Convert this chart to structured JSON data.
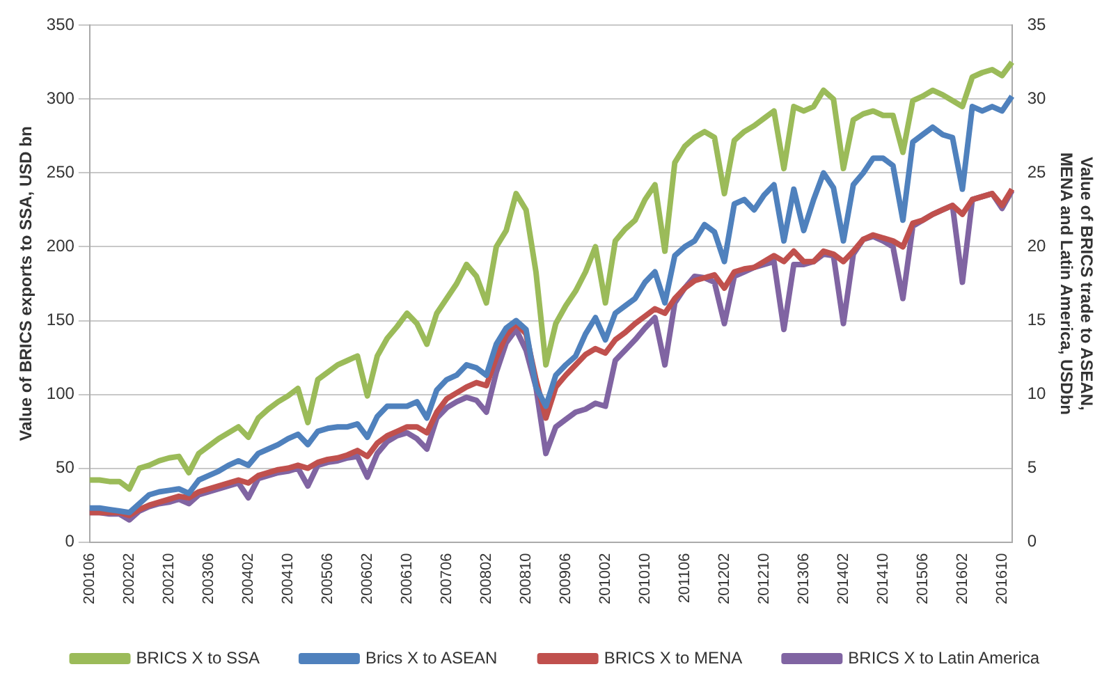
{
  "chart_data": {
    "type": "line",
    "ylabel": "Value of BRICS exports to SSA, USD bn",
    "y2label": "Value of BRICS trade to ASEAN, MENA and Latin America, USDbn",
    "categories": [
      "200106",
      null,
      null,
      null,
      "200202",
      null,
      null,
      null,
      "200210",
      null,
      null,
      null,
      "200306",
      null,
      null,
      null,
      "200402",
      null,
      null,
      null,
      "200410",
      null,
      null,
      null,
      "200506",
      null,
      null,
      null,
      "200602",
      null,
      null,
      null,
      "200610",
      null,
      null,
      null,
      "200706",
      null,
      null,
      null,
      "200802",
      null,
      null,
      null,
      "200810",
      null,
      null,
      null,
      "200906",
      null,
      null,
      null,
      "201002",
      null,
      null,
      null,
      "201010",
      null,
      null,
      null,
      "201106",
      null,
      null,
      null,
      "201202",
      null,
      null,
      null,
      "201210",
      null,
      null,
      null,
      "201306",
      null,
      null,
      null,
      "201402",
      null,
      null,
      null,
      "201410",
      null,
      null,
      null,
      "201506",
      null,
      null,
      null,
      "201602",
      null,
      null,
      null,
      "201610",
      null
    ],
    "series": [
      {
        "name": "BRICS X to SSA",
        "color": "#9bbb59",
        "values": [
          42,
          42,
          41,
          41,
          36,
          50,
          52,
          55,
          57,
          58,
          47,
          60,
          65,
          70,
          74,
          78,
          71,
          84,
          90,
          95,
          99,
          104,
          81,
          110,
          115,
          120,
          123,
          126,
          99,
          126,
          138,
          146,
          155,
          148,
          134,
          155,
          165,
          175,
          188,
          180,
          162,
          200,
          211,
          236,
          225,
          183,
          120,
          148,
          160,
          170,
          183,
          200,
          162,
          204,
          212,
          218,
          232,
          242,
          197,
          257,
          268,
          274,
          278,
          274,
          236,
          272,
          278,
          282,
          287,
          292,
          253,
          295,
          292,
          295,
          306,
          300,
          253,
          286,
          290,
          292,
          289,
          289,
          264,
          299,
          302,
          306,
          303,
          299,
          295,
          315,
          318,
          320,
          316,
          325
        ]
      },
      {
        "name": "Brics X to ASEAN",
        "color": "#4f81bd",
        "axis": "y2",
        "values": [
          2.3,
          2.3,
          2.2,
          2.1,
          2.0,
          2.6,
          3.2,
          3.4,
          3.5,
          3.6,
          3.3,
          4.2,
          4.5,
          4.8,
          5.2,
          5.5,
          5.2,
          6.0,
          6.3,
          6.6,
          7.0,
          7.3,
          6.6,
          7.5,
          7.7,
          7.8,
          7.8,
          8.0,
          7.1,
          8.5,
          9.2,
          9.2,
          9.2,
          9.5,
          8.4,
          10.3,
          11.0,
          11.3,
          12.0,
          11.8,
          11.3,
          13.4,
          14.5,
          15.0,
          14.4,
          10.5,
          9.2,
          11.3,
          12.0,
          12.6,
          14.1,
          15.2,
          13.7,
          15.5,
          16.0,
          16.5,
          17.6,
          18.3,
          16.2,
          19.4,
          20.0,
          20.4,
          21.5,
          21.0,
          19.0,
          22.9,
          23.2,
          22.5,
          23.5,
          24.2,
          20.4,
          23.9,
          21.1,
          23.2,
          25.0,
          24.0,
          20.4,
          24.2,
          25.0,
          26.0,
          26.0,
          25.5,
          21.8,
          27.1,
          27.6,
          28.1,
          27.6,
          27.4,
          23.9,
          29.5,
          29.2,
          29.5,
          29.2,
          30.2
        ]
      },
      {
        "name": "BRICS X to MENA",
        "color": "#c0504d",
        "axis": "y2",
        "values": [
          2.0,
          2.0,
          2.0,
          2.0,
          1.8,
          2.2,
          2.5,
          2.7,
          2.9,
          3.1,
          3.0,
          3.4,
          3.6,
          3.8,
          4.0,
          4.2,
          4.0,
          4.5,
          4.7,
          4.9,
          5.0,
          5.2,
          5.0,
          5.4,
          5.6,
          5.7,
          5.9,
          6.2,
          5.8,
          6.7,
          7.2,
          7.5,
          7.8,
          7.8,
          7.4,
          8.8,
          9.7,
          10.1,
          10.5,
          10.8,
          10.6,
          12.5,
          14.0,
          14.8,
          14.1,
          11.0,
          8.4,
          10.5,
          11.3,
          12.0,
          12.7,
          13.1,
          12.8,
          13.7,
          14.2,
          14.8,
          15.3,
          15.8,
          15.5,
          16.5,
          17.2,
          17.7,
          17.9,
          18.1,
          17.2,
          18.3,
          18.5,
          18.6,
          19.0,
          19.4,
          19.0,
          19.7,
          19.0,
          19.0,
          19.7,
          19.5,
          19.0,
          19.7,
          20.5,
          20.8,
          20.6,
          20.4,
          20.0,
          21.6,
          21.8,
          22.2,
          22.5,
          22.8,
          22.2,
          23.2,
          23.4,
          23.6,
          22.8,
          23.9
        ]
      },
      {
        "name": "BRICS X to Latin America",
        "color": "#8064a2",
        "axis": "y2",
        "values": [
          2.0,
          2.0,
          1.9,
          1.9,
          1.5,
          2.1,
          2.4,
          2.6,
          2.7,
          2.9,
          2.6,
          3.2,
          3.4,
          3.6,
          3.8,
          4.0,
          3.0,
          4.3,
          4.5,
          4.7,
          4.8,
          5.0,
          3.8,
          5.2,
          5.4,
          5.5,
          5.7,
          5.8,
          4.4,
          6.0,
          6.8,
          7.2,
          7.4,
          7.0,
          6.3,
          8.4,
          9.1,
          9.5,
          9.8,
          9.6,
          8.8,
          11.5,
          13.5,
          14.4,
          13.0,
          10.5,
          6.0,
          7.8,
          8.3,
          8.8,
          9.0,
          9.4,
          9.2,
          12.3,
          13.0,
          13.7,
          14.5,
          15.2,
          12.0,
          16.2,
          17.2,
          18.0,
          17.9,
          17.6,
          14.8,
          18.0,
          18.3,
          18.6,
          18.8,
          19.0,
          14.4,
          18.8,
          18.8,
          19.0,
          19.5,
          19.4,
          14.8,
          19.5,
          20.5,
          20.7,
          20.4,
          20.0,
          16.5,
          21.4,
          21.8,
          22.2,
          22.5,
          22.8,
          17.6,
          23.2,
          23.4,
          23.6,
          22.6,
          23.8
        ]
      }
    ],
    "ylim": [
      0,
      350
    ],
    "yticks": [
      0,
      50,
      100,
      150,
      200,
      250,
      300,
      350
    ],
    "y2lim": [
      0,
      35
    ],
    "y2ticks": [
      0,
      5,
      10,
      15,
      20,
      25,
      30,
      35
    ],
    "grid": "y",
    "legend": "bottom",
    "marker": "none",
    "line_style": "solid"
  }
}
